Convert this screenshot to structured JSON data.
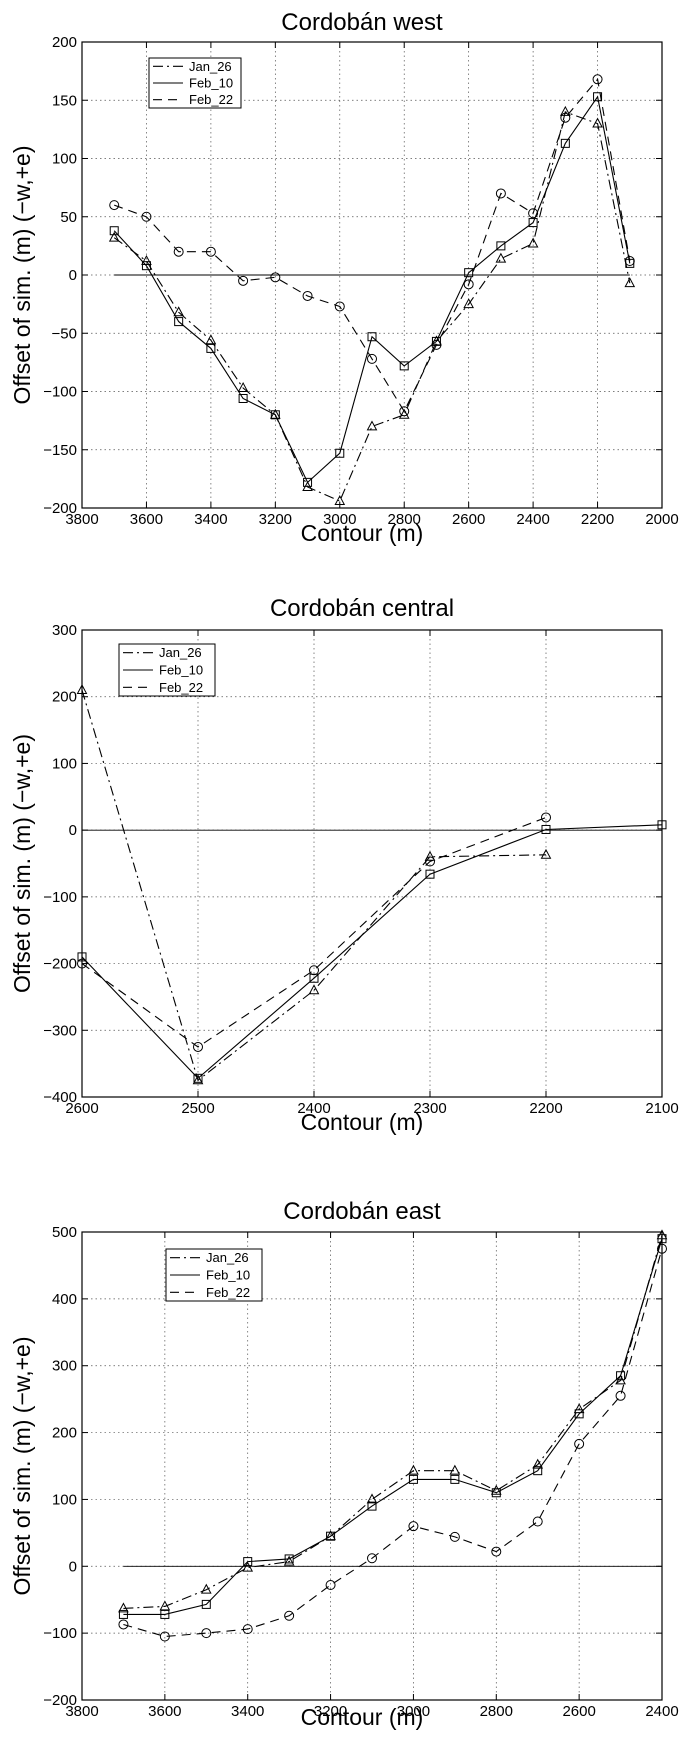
{
  "chart_data": [
    {
      "type": "line",
      "title": "Cordobán west",
      "xlabel": "Contour (m)",
      "ylabel": "Offset of sim. (m) (−w,+e)",
      "xlim": [
        3800,
        2000
      ],
      "ylim": [
        -200,
        200
      ],
      "xticks": [
        "3800",
        "3600",
        "3400",
        "3200",
        "3000",
        "2800",
        "2600",
        "2400",
        "2200",
        "2000"
      ],
      "yticks": [
        "−200",
        "−150",
        "−100",
        "−50",
        "0",
        "50",
        "100",
        "150",
        "200"
      ],
      "grid": true,
      "legend_position": "top-left",
      "zero_line": [
        3700,
        2100
      ],
      "series": [
        {
          "name": "Jan_26",
          "style": "dashdot",
          "marker": "triangle",
          "x": [
            3700,
            3600,
            3500,
            3400,
            3300,
            3200,
            3100,
            3000,
            2900,
            2800,
            2700,
            2600,
            2500,
            2400,
            2300,
            2200,
            2100
          ],
          "y": [
            32,
            12,
            -32,
            -56,
            -97,
            -120,
            -182,
            -194,
            -130,
            -120,
            -57,
            -25,
            14,
            27,
            140,
            130,
            -7
          ]
        },
        {
          "name": "Feb_10",
          "style": "solid",
          "marker": "square",
          "x": [
            3700,
            3600,
            3500,
            3400,
            3300,
            3200,
            3100,
            3000,
            2900,
            2800,
            2700,
            2600,
            2500,
            2400,
            2300,
            2200,
            2100
          ],
          "y": [
            38,
            8,
            -40,
            -63,
            -106,
            -120,
            -178,
            -153,
            -53,
            -78,
            -57,
            2,
            25,
            45,
            113,
            153,
            10
          ]
        },
        {
          "name": "Feb_22",
          "style": "dashed",
          "marker": "circle",
          "x": [
            3700,
            3600,
            3500,
            3400,
            3300,
            3200,
            3100,
            3000,
            2900,
            2800,
            2700,
            2600,
            2500,
            2400,
            2300,
            2200,
            2100
          ],
          "y": [
            60,
            50,
            20,
            20,
            -5,
            -2,
            -18,
            -27,
            -72,
            -117,
            -60,
            -8,
            70,
            53,
            135,
            168,
            12
          ]
        }
      ]
    },
    {
      "type": "line",
      "title": "Cordobán central",
      "xlabel": "Contour (m)",
      "ylabel": "Offset of sim. (m) (−w,+e)",
      "xlim": [
        2600,
        2100
      ],
      "ylim": [
        -400,
        300
      ],
      "xticks": [
        "2600",
        "2500",
        "2400",
        "2300",
        "2200",
        "2100"
      ],
      "yticks": [
        "−400",
        "−300",
        "−200",
        "−100",
        "0",
        "100",
        "200",
        "300"
      ],
      "grid": true,
      "legend_position": "top-left",
      "zero_line": [
        2600,
        2100
      ],
      "series": [
        {
          "name": "Jan_26",
          "style": "dashdot",
          "marker": "triangle",
          "x": [
            2600,
            2500,
            2400,
            2300,
            2200
          ],
          "y": [
            210,
            -375,
            -240,
            -40,
            -37
          ]
        },
        {
          "name": "Feb_10",
          "style": "solid",
          "marker": "square",
          "x": [
            2600,
            2500,
            2400,
            2300,
            2200,
            2100
          ],
          "y": [
            -190,
            -372,
            -222,
            -66,
            1,
            8
          ]
        },
        {
          "name": "Feb_22",
          "style": "dashed",
          "marker": "circle",
          "x": [
            2600,
            2500,
            2400,
            2300,
            2200
          ],
          "y": [
            -200,
            -325,
            -210,
            -47,
            19
          ]
        }
      ]
    },
    {
      "type": "line",
      "title": "Cordobán east",
      "xlabel": "Contour (m)",
      "ylabel": "Offset of sim. (m) (−w,+e)",
      "xlim": [
        3800,
        2400
      ],
      "ylim": [
        -200,
        500
      ],
      "xticks": [
        "3800",
        "3600",
        "3400",
        "3200",
        "3000",
        "2800",
        "2600",
        "2400"
      ],
      "yticks": [
        "−200",
        "−100",
        "0",
        "100",
        "200",
        "300",
        "400",
        "500"
      ],
      "grid": true,
      "legend_position": "top-left",
      "zero_line": [
        3700,
        2400
      ],
      "series": [
        {
          "name": "Jan_26",
          "style": "dashdot",
          "marker": "triangle",
          "x": [
            3700,
            3600,
            3500,
            3400,
            3300,
            3200,
            3100,
            3000,
            2900,
            2800,
            2700,
            2600,
            2500,
            2400
          ],
          "y": [
            -63,
            -60,
            -35,
            -2,
            7,
            45,
            100,
            143,
            143,
            113,
            152,
            235,
            278,
            495
          ]
        },
        {
          "name": "Feb_10",
          "style": "solid",
          "marker": "square",
          "x": [
            3700,
            3600,
            3500,
            3400,
            3300,
            3200,
            3100,
            3000,
            2900,
            2800,
            2700,
            2600,
            2500,
            2400
          ],
          "y": [
            -72,
            -72,
            -57,
            7,
            11,
            45,
            90,
            130,
            130,
            110,
            143,
            228,
            285,
            490
          ]
        },
        {
          "name": "Feb_22",
          "style": "dashed",
          "marker": "circle",
          "x": [
            3700,
            3600,
            3500,
            3400,
            3300,
            3200,
            3100,
            3000,
            2900,
            2800,
            2700,
            2600,
            2500,
            2400
          ],
          "y": [
            -87,
            -105,
            -100,
            -94,
            -74,
            -28,
            12,
            60,
            44,
            22,
            67,
            183,
            255,
            475
          ]
        }
      ]
    }
  ]
}
